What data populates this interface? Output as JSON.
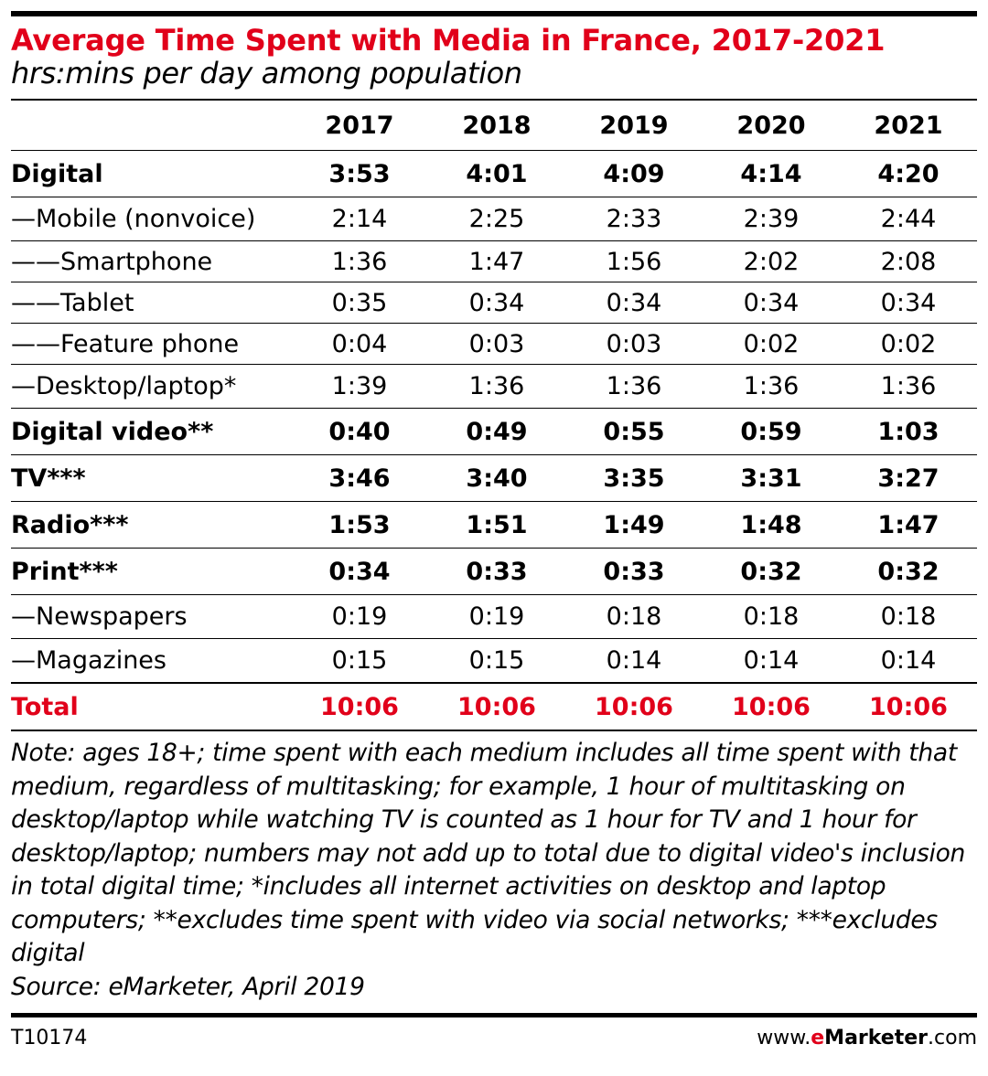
{
  "header": {
    "title": "Average Time Spent with Media in France, 2017-2021",
    "subtitle": "hrs:mins per day among population"
  },
  "chart_data": {
    "type": "table",
    "title": "Average Time Spent with Media in France, 2017-2021",
    "subtitle": "hrs:mins per day among population",
    "columns": [
      "2017",
      "2018",
      "2019",
      "2020",
      "2021"
    ],
    "rows": [
      {
        "label": "Digital",
        "style": "bold",
        "values": [
          "3:53",
          "4:01",
          "4:09",
          "4:14",
          "4:20"
        ]
      },
      {
        "label": "—Mobile (nonvoice)",
        "style": "sub",
        "values": [
          "2:14",
          "2:25",
          "2:33",
          "2:39",
          "2:44"
        ]
      },
      {
        "label": "——Smartphone",
        "style": "sub2",
        "values": [
          "1:36",
          "1:47",
          "1:56",
          "2:02",
          "2:08"
        ]
      },
      {
        "label": "——Tablet",
        "style": "sub2",
        "values": [
          "0:35",
          "0:34",
          "0:34",
          "0:34",
          "0:34"
        ]
      },
      {
        "label": "——Feature phone",
        "style": "sub2",
        "values": [
          "0:04",
          "0:03",
          "0:03",
          "0:02",
          "0:02"
        ]
      },
      {
        "label": "—Desktop/laptop*",
        "style": "sub",
        "values": [
          "1:39",
          "1:36",
          "1:36",
          "1:36",
          "1:36"
        ]
      },
      {
        "label": "Digital video**",
        "style": "bold",
        "values": [
          "0:40",
          "0:49",
          "0:55",
          "0:59",
          "1:03"
        ]
      },
      {
        "label": "TV***",
        "style": "bold",
        "values": [
          "3:46",
          "3:40",
          "3:35",
          "3:31",
          "3:27"
        ]
      },
      {
        "label": "Radio***",
        "style": "bold",
        "values": [
          "1:53",
          "1:51",
          "1:49",
          "1:48",
          "1:47"
        ]
      },
      {
        "label": "Print***",
        "style": "bold",
        "values": [
          "0:34",
          "0:33",
          "0:33",
          "0:32",
          "0:32"
        ]
      },
      {
        "label": "—Newspapers",
        "style": "sub",
        "values": [
          "0:19",
          "0:19",
          "0:18",
          "0:18",
          "0:18"
        ]
      },
      {
        "label": "—Magazines",
        "style": "sub",
        "values": [
          "0:15",
          "0:15",
          "0:14",
          "0:14",
          "0:14"
        ]
      },
      {
        "label": "Total",
        "style": "total",
        "values": [
          "10:06",
          "10:06",
          "10:06",
          "10:06",
          "10:06"
        ]
      }
    ]
  },
  "note": {
    "text": "Note: ages 18+; time spent with each medium includes all time spent with that medium, regardless of multitasking; for example, 1 hour of multitasking on desktop/laptop while watching TV is counted as 1 hour for TV and 1 hour for desktop/laptop; numbers may not add up to total due to digital video's inclusion in total digital time; *includes all internet activities on desktop and laptop computers; **excludes time spent with video via social networks; ***excludes digital",
    "source": "Source: eMarketer, April 2019"
  },
  "footer": {
    "chart_id": "T10174",
    "brand_prefix": "www.",
    "brand_e": "e",
    "brand_name": "Marketer",
    "brand_suffix": ".com"
  },
  "colors": {
    "accent": "#e1001a",
    "text": "#000000",
    "background": "#ffffff"
  }
}
